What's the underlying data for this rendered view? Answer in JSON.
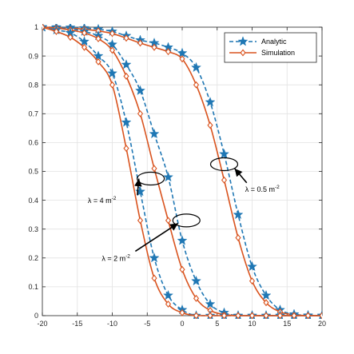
{
  "chart_data": {
    "type": "line",
    "title": "",
    "xlabel": "",
    "ylabel": "",
    "xlim": [
      -20,
      20
    ],
    "ylim": [
      0,
      1
    ],
    "grid": true,
    "legend_position": "top-right",
    "x_ticks": [
      -20,
      -15,
      -10,
      -5,
      0,
      5,
      10,
      15,
      20
    ],
    "x_tick_labels": [
      "-20",
      "-15",
      "-10",
      "-5",
      "0",
      "5",
      "10",
      "15",
      "20"
    ],
    "y_ticks": [
      0,
      0.1,
      0.2,
      0.3,
      0.4,
      0.5,
      0.6,
      0.7,
      0.8,
      0.9,
      1
    ],
    "y_tick_labels": [
      "0",
      "0.1",
      "0.2",
      "0.3",
      "0.4",
      "0.5",
      "0.6",
      "0.7",
      "0.8",
      "0.9",
      "1"
    ],
    "x": [
      -20,
      -18,
      -16,
      -14,
      -12,
      -10,
      -8,
      -6,
      -4,
      -2,
      0,
      2,
      4,
      6,
      8,
      10,
      12,
      14,
      16,
      18,
      20
    ],
    "series": [
      {
        "name": "Analytic",
        "group": "λ = 0.5 m^-2",
        "color": "#1f77b4",
        "marker": "star",
        "dash": true,
        "values": [
          1.0,
          1.0,
          0.999,
          0.997,
          0.993,
          0.985,
          0.97,
          0.955,
          0.945,
          0.93,
          0.91,
          0.86,
          0.74,
          0.56,
          0.35,
          0.17,
          0.07,
          0.02,
          0.005,
          0.001,
          0.0
        ]
      },
      {
        "name": "Simulation",
        "group": "λ = 0.5 m^-2",
        "color": "#d9531e",
        "marker": "diamond",
        "dash": false,
        "values": [
          1.0,
          0.999,
          0.997,
          0.993,
          0.987,
          0.978,
          0.962,
          0.945,
          0.93,
          0.915,
          0.89,
          0.8,
          0.66,
          0.47,
          0.27,
          0.12,
          0.045,
          0.013,
          0.003,
          0.0,
          0.0
        ]
      },
      {
        "name": "Analytic",
        "group": "λ = 2 m^-2",
        "color": "#1f77b4",
        "marker": "star",
        "dash": true,
        "values": [
          1.0,
          0.998,
          0.995,
          0.985,
          0.97,
          0.94,
          0.87,
          0.78,
          0.63,
          0.48,
          0.26,
          0.12,
          0.04,
          0.01,
          0.0,
          0.0,
          0.0,
          0.0,
          0.0,
          0.0,
          0.0
        ]
      },
      {
        "name": "Simulation",
        "group": "λ = 2 m^-2",
        "color": "#d9531e",
        "marker": "diamond",
        "dash": false,
        "values": [
          1.0,
          0.997,
          0.99,
          0.98,
          0.96,
          0.92,
          0.83,
          0.7,
          0.51,
          0.33,
          0.16,
          0.06,
          0.018,
          0.004,
          0.0,
          0.0,
          0.0,
          0.0,
          0.0,
          0.0,
          0.0
        ]
      },
      {
        "name": "Analytic",
        "group": "λ = 4 m^-2",
        "color": "#1f77b4",
        "marker": "star",
        "dash": true,
        "values": [
          1.0,
          0.99,
          0.98,
          0.95,
          0.9,
          0.84,
          0.67,
          0.43,
          0.2,
          0.07,
          0.02,
          0.0,
          0.0,
          0.0,
          0.0,
          0.0,
          0.0,
          0.0,
          0.0,
          0.0,
          0.0
        ]
      },
      {
        "name": "Simulation",
        "group": "λ = 4 m^-2",
        "color": "#d9531e",
        "marker": "diamond",
        "dash": false,
        "values": [
          1.0,
          0.985,
          0.965,
          0.93,
          0.88,
          0.8,
          0.58,
          0.33,
          0.13,
          0.04,
          0.01,
          0.0,
          0.0,
          0.0,
          0.0,
          0.0,
          0.0,
          0.0,
          0.0,
          0.0,
          0.0
        ]
      }
    ],
    "legend": [
      {
        "label": "Analytic",
        "color": "#1f77b4",
        "marker": "star",
        "dash": true
      },
      {
        "label": "Simulation",
        "color": "#d9531e",
        "marker": "diamond",
        "dash": false
      }
    ],
    "annotations": [
      {
        "prefix": "λ = 4 m",
        "sup": "-2",
        "ellipse_x": -4.5,
        "ellipse_y": 0.475,
        "text_x": -13.5,
        "text_y": 0.39,
        "arrow_to_x": -6.2,
        "arrow_to_y": 0.475
      },
      {
        "prefix": "λ = 2 m",
        "sup": "-2",
        "ellipse_x": 0.6,
        "ellipse_y": 0.33,
        "text_x": -11.5,
        "text_y": 0.19,
        "arrow_to_x": -0.6,
        "arrow_to_y": 0.32
      },
      {
        "prefix": "λ = 0.5 m",
        "sup": "-2",
        "ellipse_x": 6.0,
        "ellipse_y": 0.525,
        "text_x": 9.0,
        "text_y": 0.43,
        "arrow_to_x": 7.5,
        "arrow_to_y": 0.51
      }
    ]
  }
}
